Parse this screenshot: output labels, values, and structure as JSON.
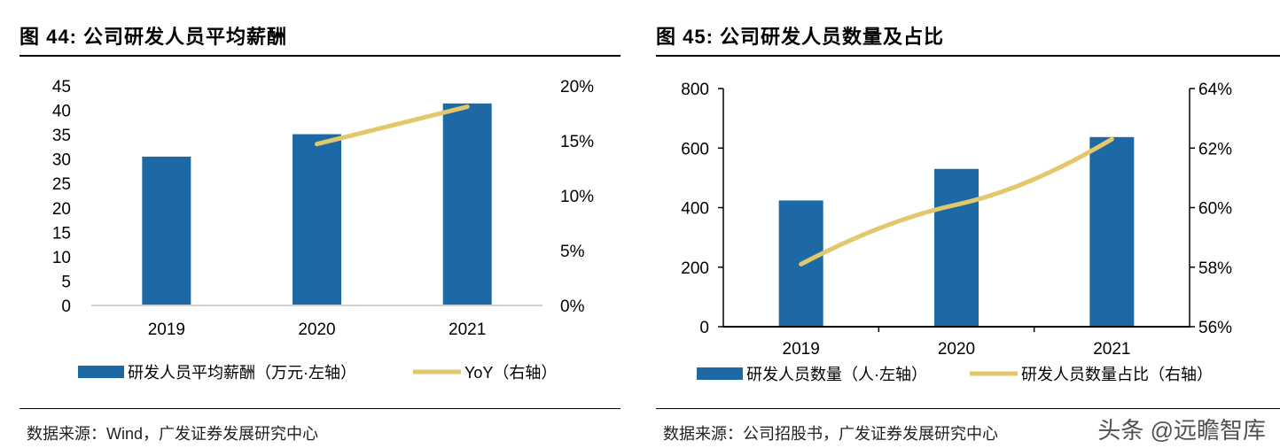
{
  "colors": {
    "bar": "#1c69a6",
    "line": "#e2c76b"
  },
  "watermark": "头条 @远瞻智库",
  "chart_data": [
    {
      "type": "bar+line",
      "title": "图 44: 公司研发人员平均薪酬",
      "categories": [
        "2019",
        "2020",
        "2021"
      ],
      "series": [
        {
          "name": "研发人员平均薪酬（万元·左轴）",
          "type": "bar",
          "axis": "left",
          "values": [
            30.5,
            35.1,
            41.4
          ]
        },
        {
          "name": "YoY（右轴）",
          "type": "line",
          "axis": "right",
          "values": [
            null,
            14.7,
            18.1
          ]
        }
      ],
      "y_left": {
        "range": [
          0,
          45
        ],
        "ticks": [
          "0",
          "5",
          "10",
          "15",
          "20",
          "25",
          "30",
          "35",
          "40",
          "45"
        ]
      },
      "y_right": {
        "range": [
          0,
          20
        ],
        "ticks": [
          "0%",
          "5%",
          "10%",
          "15%",
          "20%"
        ]
      },
      "legend": "bottom",
      "source": "数据来源：Wind，广发证券发展研究中心"
    },
    {
      "type": "bar+line",
      "title": "图 45: 公司研发人员数量及占比",
      "categories": [
        "2019",
        "2020",
        "2021"
      ],
      "series": [
        {
          "name": "研发人员数量（人·左轴）",
          "type": "bar",
          "axis": "left",
          "values": [
            424,
            530,
            637
          ]
        },
        {
          "name": "研发人员数量占比（右轴）",
          "type": "line",
          "axis": "right",
          "values": [
            58.1,
            60.1,
            62.3
          ]
        }
      ],
      "y_left": {
        "range": [
          0,
          800
        ],
        "ticks": [
          "0",
          "200",
          "400",
          "600",
          "800"
        ]
      },
      "y_right": {
        "range": [
          56,
          64
        ],
        "ticks": [
          "56%",
          "58%",
          "60%",
          "62%",
          "64%"
        ]
      },
      "legend": "bottom",
      "source": "数据来源：公司招股书，广发证券发展研究中心"
    }
  ]
}
